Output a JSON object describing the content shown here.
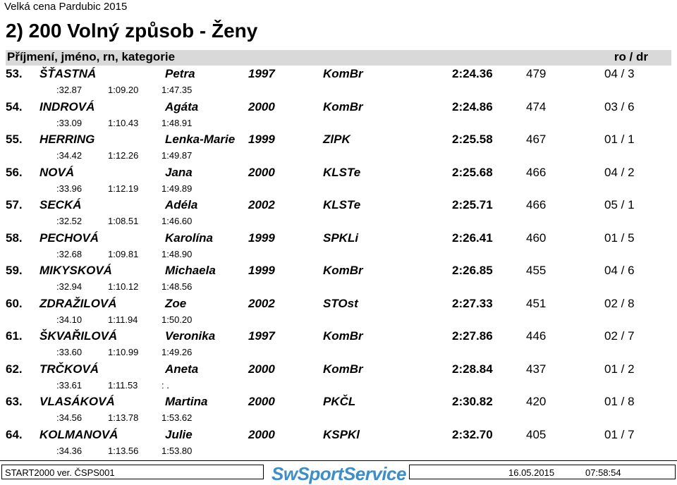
{
  "header": {
    "meet_title": "Velká cena Pardubic 2015",
    "event_title": "2) 200  Volný způsob  -  Ženy",
    "col_left": "Příjmení, jméno, rn, kategorie",
    "col_right": "ro / dr"
  },
  "rows": [
    {
      "place": "53.",
      "surname": "ŠŤASTNÁ",
      "first": "Petra",
      "year": "1997",
      "club": "KomBr",
      "time": "2:24.36",
      "points": "479",
      "ro": "04",
      "dr": "3",
      "splits": [
        ":32.87",
        "1:09.20",
        "1:47.35"
      ]
    },
    {
      "place": "54.",
      "surname": "INDROVÁ",
      "first": "Agáta",
      "year": "2000",
      "club": "KomBr",
      "time": "2:24.86",
      "points": "474",
      "ro": "03",
      "dr": "6",
      "splits": [
        ":33.09",
        "1:10.43",
        "1:48.91"
      ]
    },
    {
      "place": "55.",
      "surname": "HERRING",
      "first": "Lenka-Marie",
      "year": "1999",
      "club": "ZlPK",
      "time": "2:25.58",
      "points": "467",
      "ro": "01",
      "dr": "1",
      "splits": [
        ":34.42",
        "1:12.26",
        "1:49.87"
      ]
    },
    {
      "place": "56.",
      "surname": "NOVÁ",
      "first": "Jana",
      "year": "2000",
      "club": "KLSTe",
      "time": "2:25.68",
      "points": "466",
      "ro": "04",
      "dr": "2",
      "splits": [
        ":33.96",
        "1:12.19",
        "1:49.89"
      ]
    },
    {
      "place": "57.",
      "surname": "SECKÁ",
      "first": "Adéla",
      "year": "2002",
      "club": "KLSTe",
      "time": "2:25.71",
      "points": "466",
      "ro": "05",
      "dr": "1",
      "splits": [
        ":32.52",
        "1:08.51",
        "1:46.60"
      ]
    },
    {
      "place": "58.",
      "surname": "PECHOVÁ",
      "first": "Karolína",
      "year": "1999",
      "club": "SPKLi",
      "time": "2:26.41",
      "points": "460",
      "ro": "01",
      "dr": "5",
      "splits": [
        ":32.68",
        "1:09.81",
        "1:48.90"
      ]
    },
    {
      "place": "59.",
      "surname": "MIKYSKOVÁ",
      "first": "Michaela",
      "year": "1999",
      "club": "KomBr",
      "time": "2:26.85",
      "points": "455",
      "ro": "04",
      "dr": "6",
      "splits": [
        ":32.94",
        "1:10.12",
        "1:48.56"
      ]
    },
    {
      "place": "60.",
      "surname": "ZDRAŽILOVÁ",
      "first": "Zoe",
      "year": "2002",
      "club": "STOst",
      "time": "2:27.33",
      "points": "451",
      "ro": "02",
      "dr": "8",
      "splits": [
        ":34.10",
        "1:11.94",
        "1:50.20"
      ]
    },
    {
      "place": "61.",
      "surname": "ŠKVAŘILOVÁ",
      "first": "Veronika",
      "year": "1997",
      "club": "KomBr",
      "time": "2:27.86",
      "points": "446",
      "ro": "02",
      "dr": "7",
      "splits": [
        ":33.60",
        "1:10.99",
        "1:49.26"
      ]
    },
    {
      "place": "62.",
      "surname": "TRČKOVÁ",
      "first": "Aneta",
      "year": "2000",
      "club": "KomBr",
      "time": "2:28.84",
      "points": "437",
      "ro": "01",
      "dr": "2",
      "splits": [
        ":33.61",
        "1:11.53",
        " : ."
      ]
    },
    {
      "place": "63.",
      "surname": "VLASÁKOVÁ",
      "first": "Martina",
      "year": "2000",
      "club": "PKČL",
      "time": "2:30.82",
      "points": "420",
      "ro": "01",
      "dr": "8",
      "splits": [
        ":34.56",
        "1:13.78",
        "1:53.62"
      ]
    },
    {
      "place": "64.",
      "surname": "KOLMANOVÁ",
      "first": "Julie",
      "year": "2000",
      "club": "KSPKl",
      "time": "2:32.70",
      "points": "405",
      "ro": "01",
      "dr": "7",
      "splits": [
        ":34.36",
        "1:13.56",
        "1:53.80"
      ]
    }
  ],
  "footer": {
    "software": "START2000 ver.  ČSPS001",
    "logo": "SwSportService",
    "date": "16.05.2015",
    "time": "07:58:54"
  }
}
